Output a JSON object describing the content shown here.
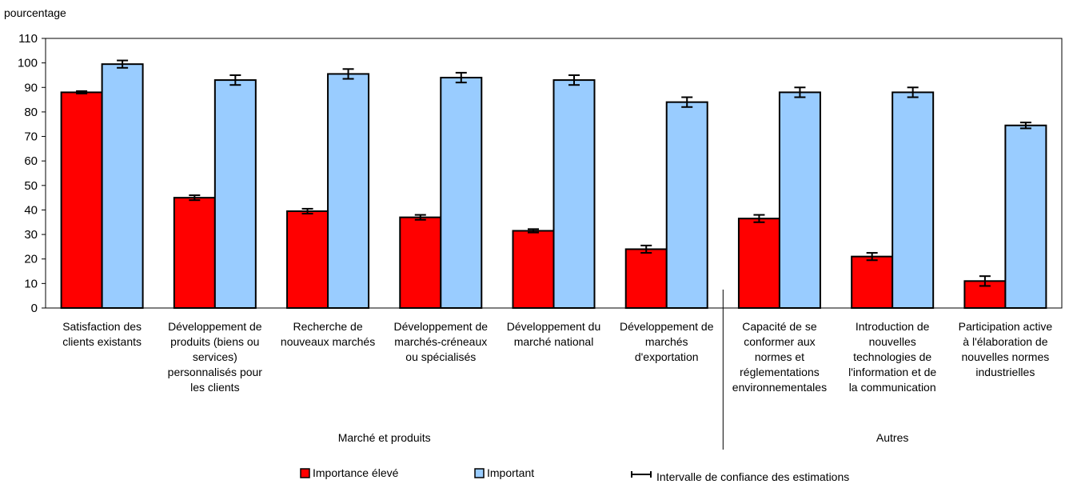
{
  "chart_data": {
    "type": "bar",
    "ylabel": "pourcentage",
    "ylim": [
      0,
      110
    ],
    "ytick_step": 10,
    "categories": [
      [
        "Satisfaction des",
        "clients existants"
      ],
      [
        "Développement de",
        "produits (biens ou",
        "services)",
        "personnalisés pour",
        "les clients"
      ],
      [
        "Recherche de",
        "nouveaux marchés"
      ],
      [
        "Développement de",
        "marchés-créneaux",
        "ou spécialisés"
      ],
      [
        "Développement du",
        "marché national"
      ],
      [
        "Développement de",
        "marchés",
        "d'exportation"
      ],
      [
        "Capacité de se",
        "conformer aux",
        "normes et",
        "réglementations",
        "environnementales"
      ],
      [
        "Introduction de",
        "nouvelles",
        "technologies de",
        "l'information et de",
        "la communication"
      ],
      [
        "Participation active",
        "à l'élaboration de",
        "nouvelles normes",
        "industrielles"
      ]
    ],
    "groups": [
      {
        "label": "Marché et produits",
        "categories": [
          0,
          1,
          2,
          3,
          4,
          5
        ]
      },
      {
        "label": "Autres",
        "categories": [
          6,
          7,
          8
        ]
      }
    ],
    "series": [
      {
        "name": "Importance élevé",
        "color": "#ff0000",
        "values": [
          88,
          45,
          39.5,
          37,
          31.5,
          24,
          36.5,
          21,
          11
        ],
        "errors": [
          0.5,
          1,
          1,
          1,
          0.7,
          1.5,
          1.5,
          1.5,
          2
        ]
      },
      {
        "name": "Important",
        "color": "#99ccff",
        "values": [
          99.5,
          93,
          95.5,
          94,
          93,
          84,
          88,
          88,
          74.5
        ],
        "errors": [
          1.5,
          2,
          2,
          2,
          2,
          2,
          2,
          2,
          1.2
        ]
      }
    ],
    "legend": {
      "position": "bottom",
      "error_bar_label": "Intervalle de confiance des estimations"
    }
  }
}
